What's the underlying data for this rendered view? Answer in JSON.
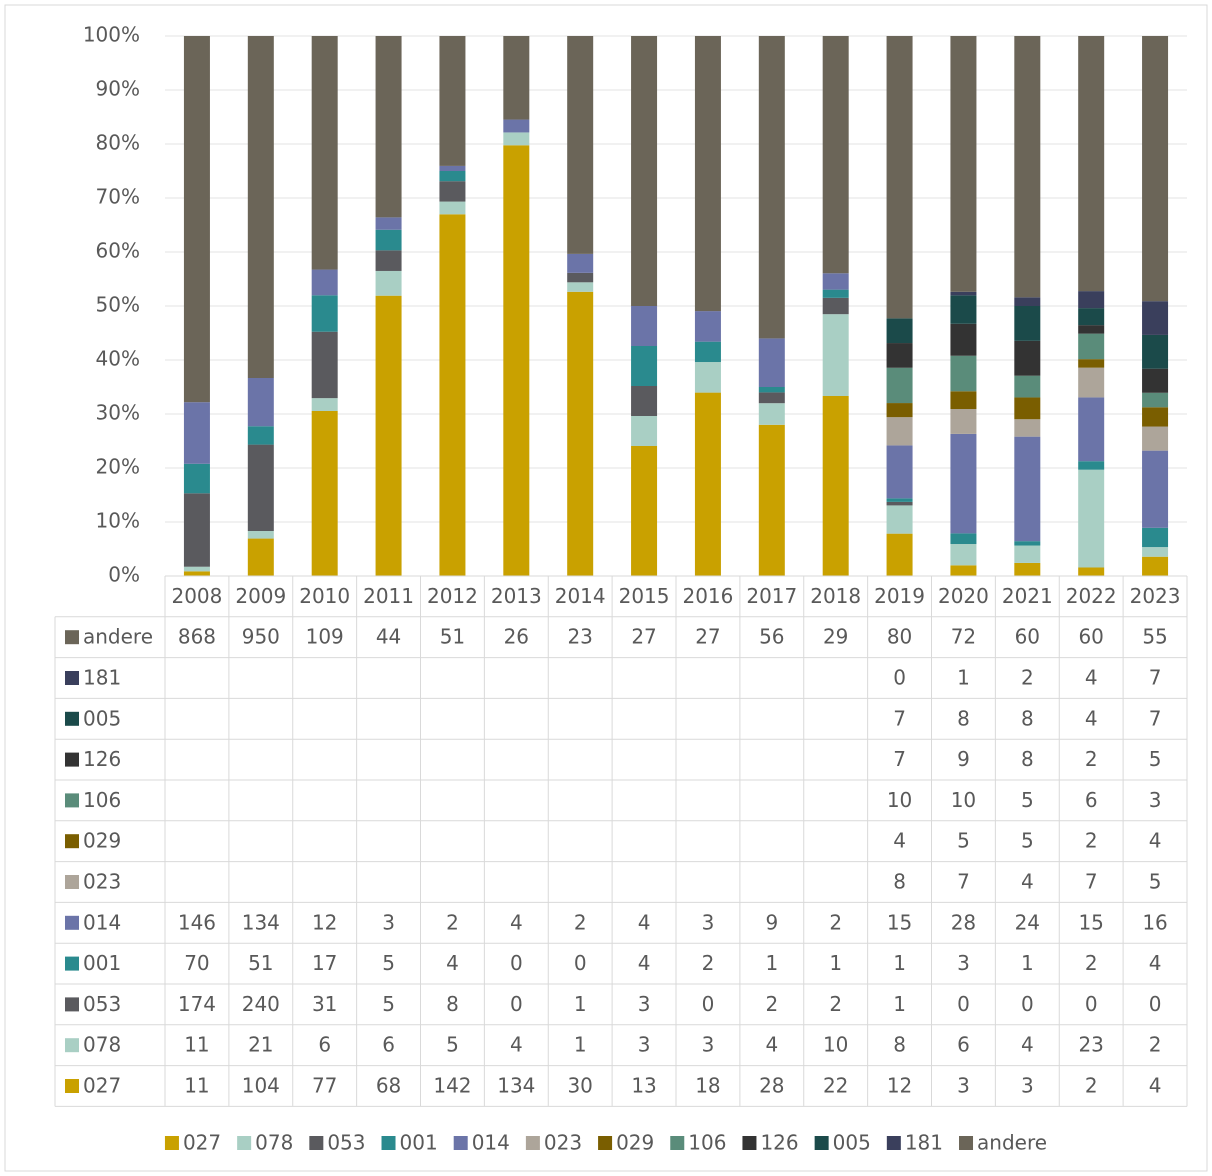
{
  "chart_data": {
    "type": "stacked100_bar",
    "categories": [
      "2008",
      "2009",
      "2010",
      "2011",
      "2012",
      "2013",
      "2014",
      "2015",
      "2016",
      "2017",
      "2018",
      "2019",
      "2020",
      "2021",
      "2022",
      "2023"
    ],
    "series": [
      {
        "name": "027",
        "color": "#c9a100",
        "values": [
          11,
          104,
          77,
          68,
          142,
          134,
          30,
          13,
          18,
          28,
          22,
          12,
          3,
          3,
          2,
          4
        ]
      },
      {
        "name": "078",
        "color": "#a9cfc4",
        "values": [
          11,
          21,
          6,
          6,
          5,
          4,
          1,
          3,
          3,
          4,
          10,
          8,
          6,
          4,
          23,
          2
        ]
      },
      {
        "name": "053",
        "color": "#5a5a5e",
        "values": [
          174,
          240,
          31,
          5,
          8,
          0,
          1,
          3,
          0,
          2,
          2,
          1,
          0,
          0,
          0,
          0
        ]
      },
      {
        "name": "001",
        "color": "#2a8a8e",
        "values": [
          70,
          51,
          17,
          5,
          4,
          0,
          0,
          4,
          2,
          1,
          1,
          1,
          3,
          1,
          2,
          4
        ]
      },
      {
        "name": "014",
        "color": "#6b74a8",
        "values": [
          146,
          134,
          12,
          3,
          2,
          4,
          2,
          4,
          3,
          9,
          2,
          15,
          28,
          24,
          15,
          16
        ]
      },
      {
        "name": "023",
        "color": "#ada59a",
        "values": [
          null,
          null,
          null,
          null,
          null,
          null,
          null,
          null,
          null,
          null,
          null,
          8,
          7,
          4,
          7,
          5
        ]
      },
      {
        "name": "029",
        "color": "#7a5e00",
        "values": [
          null,
          null,
          null,
          null,
          null,
          null,
          null,
          null,
          null,
          null,
          null,
          4,
          5,
          5,
          2,
          4
        ]
      },
      {
        "name": "106",
        "color": "#5a8c7a",
        "values": [
          null,
          null,
          null,
          null,
          null,
          null,
          null,
          null,
          null,
          null,
          null,
          10,
          10,
          5,
          6,
          3
        ]
      },
      {
        "name": "126",
        "color": "#333333",
        "values": [
          null,
          null,
          null,
          null,
          null,
          null,
          null,
          null,
          null,
          null,
          null,
          7,
          9,
          8,
          2,
          5
        ]
      },
      {
        "name": "005",
        "color": "#1b4a4a",
        "values": [
          null,
          null,
          null,
          null,
          null,
          null,
          null,
          null,
          null,
          null,
          null,
          7,
          8,
          8,
          4,
          7
        ]
      },
      {
        "name": "181",
        "color": "#3a3f5c",
        "values": [
          null,
          null,
          null,
          null,
          null,
          null,
          null,
          null,
          null,
          null,
          null,
          0,
          1,
          2,
          4,
          7
        ]
      },
      {
        "name": "andere",
        "color": "#6b6558",
        "values": [
          868,
          950,
          109,
          44,
          51,
          26,
          23,
          27,
          27,
          56,
          29,
          80,
          72,
          60,
          60,
          55
        ]
      }
    ],
    "ylim": [
      0,
      100
    ],
    "yticks": [
      {
        "value": 0,
        "label": "0%"
      },
      {
        "value": 10,
        "label": "10%"
      },
      {
        "value": 20,
        "label": "20%"
      },
      {
        "value": 30,
        "label": "30%"
      },
      {
        "value": 40,
        "label": "40%"
      },
      {
        "value": 50,
        "label": "50%"
      },
      {
        "value": 60,
        "label": "60%"
      },
      {
        "value": 70,
        "label": "70%"
      },
      {
        "value": 80,
        "label": "80%"
      },
      {
        "value": 90,
        "label": "90%"
      },
      {
        "value": 100,
        "label": "100%"
      }
    ],
    "grid": true,
    "legend": "bottom",
    "data_table": true
  }
}
